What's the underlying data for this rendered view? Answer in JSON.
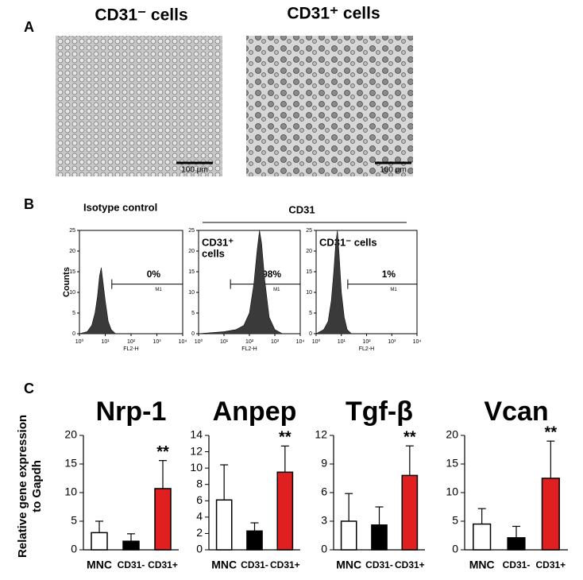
{
  "panel_labels": [
    "A",
    "B",
    "C"
  ],
  "panel_a": {
    "images": [
      {
        "title": "CD31⁻ cells",
        "scale_bar": "100 μm"
      },
      {
        "title": "CD31⁺ cells",
        "scale_bar": "100 μm"
      }
    ]
  },
  "panel_b": {
    "title_left": "Isotype control",
    "group_label": "CD31"
  },
  "panel_c": {
    "ylabel": [
      "Relative gene expression",
      "to Gapdh"
    ]
  },
  "chart_data": [
    {
      "type": "area",
      "ylabel": "Counts",
      "xlabel": "FL2-H",
      "annotation": "0%",
      "gate_label": "M1",
      "gate": [
        18,
        10000
      ],
      "log_x": true,
      "xlim": [
        1,
        10000
      ],
      "xticks": [
        {
          "value": 1,
          "label": "10⁰"
        },
        {
          "value": 10,
          "label": "10¹"
        },
        {
          "value": 100,
          "label": "10²"
        },
        {
          "value": 1000,
          "label": "10³"
        },
        {
          "value": 10000,
          "label": "10⁴"
        }
      ],
      "ylim": [
        0,
        25
      ],
      "yticks": [
        0,
        5,
        10,
        15,
        20,
        25
      ],
      "color": "#3a3a3a",
      "x": [
        1,
        2,
        3,
        4,
        5,
        6,
        7,
        8,
        10,
        13,
        17,
        25
      ],
      "values": [
        0,
        0.5,
        2,
        5,
        9,
        14,
        16,
        13,
        8,
        3,
        1,
        0
      ]
    },
    {
      "type": "area",
      "title_lines": [
        "CD31⁺",
        "cells"
      ],
      "xlabel": "FL2-H",
      "annotation": "98%",
      "gate_label": "M1",
      "gate": [
        18,
        10000
      ],
      "log_x": true,
      "xlim": [
        1,
        10000
      ],
      "xticks": [
        {
          "value": 1,
          "label": "10⁰"
        },
        {
          "value": 10,
          "label": "10¹"
        },
        {
          "value": 100,
          "label": "10²"
        },
        {
          "value": 1000,
          "label": "10³"
        },
        {
          "value": 10000,
          "label": "10⁴"
        }
      ],
      "ylim": [
        0,
        25
      ],
      "yticks": [
        0,
        5,
        10,
        15,
        20,
        25
      ],
      "color": "#3a3a3a",
      "x": [
        1,
        10,
        30,
        60,
        100,
        150,
        200,
        250,
        300,
        400,
        600,
        1000,
        2000
      ],
      "values": [
        0,
        0.5,
        1,
        2,
        5,
        12,
        20,
        25,
        22,
        13,
        4,
        1,
        0
      ]
    },
    {
      "type": "area",
      "title_lines": [
        "CD31⁻ cells"
      ],
      "xlabel": "FL2-H",
      "annotation": "1%",
      "gate_label": "M1",
      "gate": [
        18,
        10000
      ],
      "log_x": true,
      "xlim": [
        1,
        10000
      ],
      "xticks": [
        {
          "value": 1,
          "label": "10⁰"
        },
        {
          "value": 10,
          "label": "10¹"
        },
        {
          "value": 100,
          "label": "10²"
        },
        {
          "value": 1000,
          "label": "10³"
        },
        {
          "value": 10000,
          "label": "10⁴"
        }
      ],
      "ylim": [
        0,
        25
      ],
      "yticks": [
        0,
        5,
        10,
        15,
        20,
        25
      ],
      "color": "#3a3a3a",
      "x": [
        1,
        2,
        3,
        4,
        5,
        6,
        7,
        8,
        10,
        13,
        17,
        25
      ],
      "values": [
        0,
        1,
        3,
        8,
        15,
        22,
        25,
        20,
        10,
        4,
        1,
        0
      ]
    },
    {
      "type": "bar",
      "title": "Nrp-1",
      "categories": [
        "MNC",
        "CD31-",
        "CD31+"
      ],
      "values": [
        3,
        1.5,
        10.7
      ],
      "errors": [
        2,
        1.3,
        4.9
      ],
      "colors": [
        "#ffffff",
        "#000000",
        "#e02020"
      ],
      "annotations": [
        null,
        null,
        "**"
      ],
      "ylim": [
        0,
        20
      ],
      "yticks": [
        0,
        5,
        10,
        15,
        20
      ]
    },
    {
      "type": "bar",
      "title": "Anpep",
      "categories": [
        "MNC",
        "CD31-",
        "CD31+"
      ],
      "values": [
        6.1,
        2.3,
        9.5
      ],
      "errors": [
        4.3,
        1,
        3.2
      ],
      "colors": [
        "#ffffff",
        "#000000",
        "#e02020"
      ],
      "annotations": [
        null,
        null,
        "**"
      ],
      "ylim": [
        0,
        14
      ],
      "yticks": [
        0,
        2,
        4,
        6,
        8,
        10,
        12,
        14
      ]
    },
    {
      "type": "bar",
      "title": "Tgf-β",
      "categories": [
        "MNC",
        "CD31-",
        "CD31+"
      ],
      "values": [
        3,
        2.6,
        7.8
      ],
      "errors": [
        2.9,
        1.9,
        3.1
      ],
      "colors": [
        "#ffffff",
        "#000000",
        "#e02020"
      ],
      "annotations": [
        null,
        null,
        "**"
      ],
      "ylim": [
        0,
        12
      ],
      "yticks": [
        0,
        3,
        6,
        9,
        12
      ]
    },
    {
      "type": "bar",
      "title": "Vcan",
      "categories": [
        "MNC",
        "CD31-",
        "CD31+"
      ],
      "values": [
        4.5,
        2.1,
        12.5
      ],
      "errors": [
        2.7,
        2,
        6.5
      ],
      "colors": [
        "#ffffff",
        "#000000",
        "#e02020"
      ],
      "annotations": [
        null,
        null,
        "**"
      ],
      "ylim": [
        0,
        20
      ],
      "yticks": [
        0,
        5,
        10,
        15,
        20
      ]
    }
  ]
}
